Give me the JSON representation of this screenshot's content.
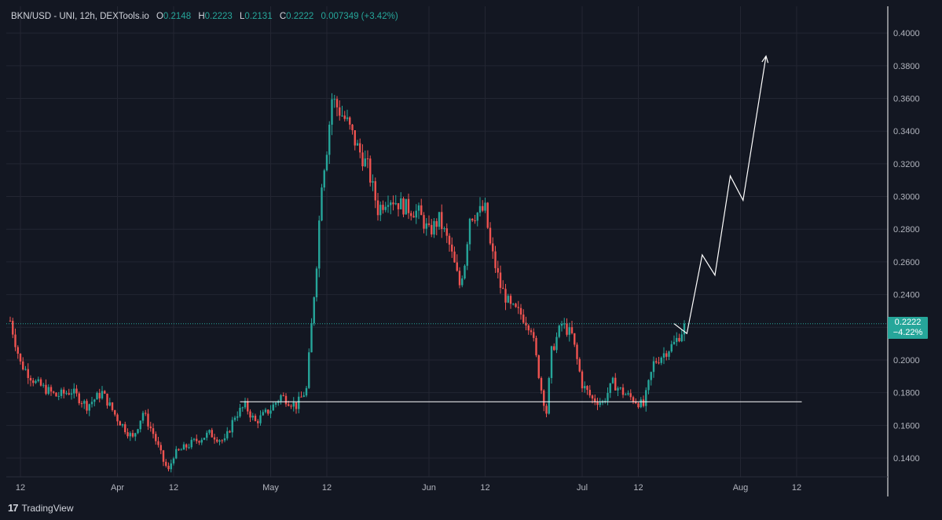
{
  "header": {
    "symbol": "BKN/USD - UNI, 12h, DEXTools.io",
    "open_label": "O",
    "open": "0.2148",
    "high_label": "H",
    "high": "0.2223",
    "low_label": "L",
    "low": "0.2131",
    "close_label": "C",
    "close": "0.2222",
    "change": "0.007349 (+3.42%)"
  },
  "last_price": {
    "value": "0.2222",
    "change": "−4.22%"
  },
  "brand": {
    "name": "TradingView",
    "logo_text": "17"
  },
  "colors": {
    "up": "#26a69a",
    "down": "#ef5350",
    "background": "#131722",
    "grid": "#232632",
    "text": "#b2b5be",
    "drawing": "#ffffff"
  },
  "chart_data": {
    "type": "candlestick",
    "title": "",
    "xlabel": "",
    "ylabel": "",
    "ylim": [
      0.128,
      0.408
    ],
    "y_ticks": [
      "0.1400",
      "0.1600",
      "0.1800",
      "0.2000",
      "0.2200",
      "0.2400",
      "0.2600",
      "0.2800",
      "0.3000",
      "0.3200",
      "0.3400",
      "0.3600",
      "0.3800",
      "0.4000"
    ],
    "y_tick_values": [
      0.14,
      0.16,
      0.18,
      0.2,
      0.22,
      0.24,
      0.26,
      0.28,
      0.3,
      0.32,
      0.34,
      0.36,
      0.38,
      0.4
    ],
    "x_range_days": [
      0,
      170
    ],
    "x_ticks": [
      {
        "label": "12",
        "day": 2
      },
      {
        "label": "Apr",
        "day": 21
      },
      {
        "label": "12",
        "day": 32
      },
      {
        "label": "May",
        "day": 51
      },
      {
        "label": "12",
        "day": 62
      },
      {
        "label": "Jun",
        "day": 82
      },
      {
        "label": "12",
        "day": 93
      },
      {
        "label": "Jul",
        "day": 112
      },
      {
        "label": "12",
        "day": 123
      },
      {
        "label": "Aug",
        "day": 143
      },
      {
        "label": "12",
        "day": 154
      }
    ],
    "anchors": [
      [
        0,
        0.224
      ],
      [
        2,
        0.198
      ],
      [
        5,
        0.186
      ],
      [
        9,
        0.178
      ],
      [
        12,
        0.181
      ],
      [
        15,
        0.172
      ],
      [
        18,
        0.18
      ],
      [
        21,
        0.164
      ],
      [
        24,
        0.152
      ],
      [
        26,
        0.168
      ],
      [
        28,
        0.155
      ],
      [
        30,
        0.138
      ],
      [
        31,
        0.132
      ],
      [
        32,
        0.142
      ],
      [
        34,
        0.146
      ],
      [
        36,
        0.15
      ],
      [
        39,
        0.155
      ],
      [
        42,
        0.15
      ],
      [
        44,
        0.166
      ],
      [
        46,
        0.172
      ],
      [
        48,
        0.162
      ],
      [
        51,
        0.17
      ],
      [
        53,
        0.178
      ],
      [
        56,
        0.172
      ],
      [
        58,
        0.182
      ],
      [
        60,
        0.26
      ],
      [
        61,
        0.31
      ],
      [
        62,
        0.33
      ],
      [
        63,
        0.36
      ],
      [
        64,
        0.355
      ],
      [
        66,
        0.345
      ],
      [
        68,
        0.33
      ],
      [
        70,
        0.318
      ],
      [
        72,
        0.292
      ],
      [
        74,
        0.3
      ],
      [
        77,
        0.294
      ],
      [
        80,
        0.29
      ],
      [
        82,
        0.278
      ],
      [
        84,
        0.286
      ],
      [
        86,
        0.27
      ],
      [
        88,
        0.246
      ],
      [
        89,
        0.26
      ],
      [
        90,
        0.288
      ],
      [
        93,
        0.292
      ],
      [
        94,
        0.27
      ],
      [
        96,
        0.245
      ],
      [
        98,
        0.232
      ],
      [
        100,
        0.228
      ],
      [
        102,
        0.22
      ],
      [
        104,
        0.182
      ],
      [
        105,
        0.168
      ],
      [
        106,
        0.205
      ],
      [
        108,
        0.222
      ],
      [
        110,
        0.215
      ],
      [
        112,
        0.185
      ],
      [
        114,
        0.176
      ],
      [
        116,
        0.174
      ],
      [
        118,
        0.186
      ],
      [
        120,
        0.18
      ],
      [
        122,
        0.176
      ],
      [
        124,
        0.172
      ],
      [
        126,
        0.198
      ],
      [
        128,
        0.204
      ],
      [
        130,
        0.21
      ],
      [
        132,
        0.22
      ]
    ],
    "support_line": {
      "price": 0.1744,
      "from_day": 45,
      "to_day": 155
    },
    "projection_path": [
      [
        130,
        0.2222
      ],
      [
        132.5,
        0.2162
      ],
      [
        135.5,
        0.2643
      ],
      [
        138,
        0.2519
      ],
      [
        141,
        0.3126
      ],
      [
        143.5,
        0.2977
      ],
      [
        148,
        0.3859
      ]
    ],
    "last_close": 0.2222
  }
}
